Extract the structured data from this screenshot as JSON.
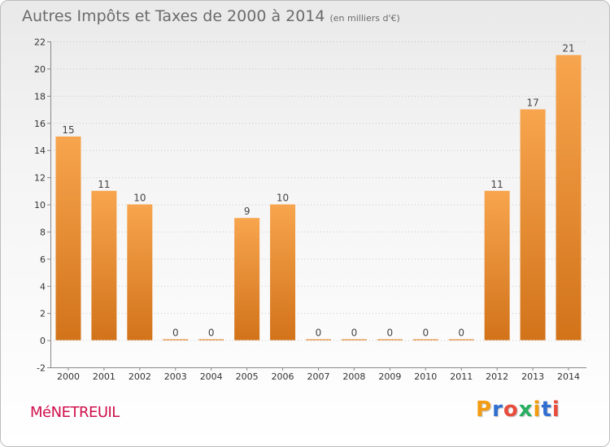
{
  "header": {
    "title": "Autres Impôts et Taxes de 2000 à 2014",
    "unit": "(en milliers d'€)"
  },
  "footer": {
    "commune": "MéNETREUIL",
    "brand": "Proxiti",
    "brand_colors": [
      "#f39c12",
      "#2f6fd1",
      "#e74c3c",
      "#27ae60",
      "#f39c12",
      "#2f6fd1",
      "#e74c3c"
    ]
  },
  "chart_data": {
    "type": "bar",
    "title": "Autres Impôts et Taxes de 2000 à 2014",
    "subtitle": "(en milliers d'€)",
    "xlabel": "",
    "ylabel": "",
    "categories": [
      "2000",
      "2001",
      "2002",
      "2003",
      "2004",
      "2005",
      "2006",
      "2007",
      "2008",
      "2009",
      "2010",
      "2011",
      "2012",
      "2013",
      "2014"
    ],
    "values": [
      15,
      11,
      10,
      0,
      0,
      9,
      10,
      0,
      0,
      0,
      0,
      0,
      11,
      17,
      21
    ],
    "ylim": [
      -2,
      22
    ],
    "yticks": [
      -2,
      0,
      2,
      4,
      6,
      8,
      10,
      12,
      14,
      16,
      18,
      20,
      22
    ],
    "grid": "horizontal-dotted",
    "bar_color_top": "#f7a54e",
    "bar_color_bottom": "#d2731a"
  }
}
